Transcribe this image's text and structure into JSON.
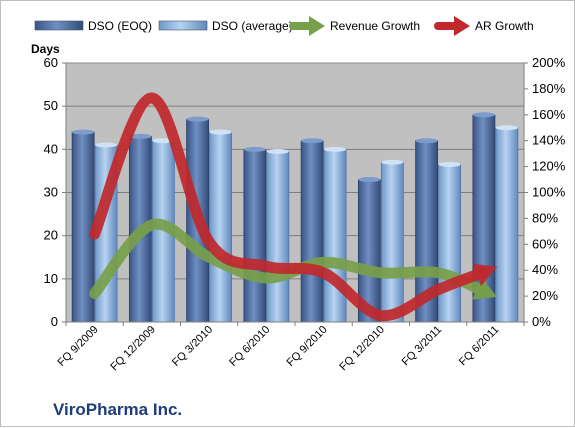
{
  "company": "ViroPharma Inc.",
  "chart_data": {
    "type": "bar",
    "title": "",
    "ylabel": "Days",
    "ylim": [
      0,
      60
    ],
    "yticks": [
      0,
      10,
      20,
      30,
      40,
      50,
      60
    ],
    "y2lim": [
      0,
      200
    ],
    "y2ticks": [
      "0%",
      "20%",
      "40%",
      "60%",
      "80%",
      "100%",
      "120%",
      "140%",
      "160%",
      "180%",
      "200%"
    ],
    "categories": [
      "FQ 9/2009",
      "FQ 12/2009",
      "FQ 3/2010",
      "FQ 6/2010",
      "FQ 9/2010",
      "FQ 12/2010",
      "FQ 3/2011",
      "FQ 6/2011"
    ],
    "grid": true,
    "legend": "top",
    "series": [
      {
        "name": "DSO (EOQ)",
        "kind": "bar",
        "axis": "left",
        "color": "#4f6fa3",
        "values": [
          44,
          43,
          47,
          40,
          42,
          33,
          42,
          48
        ]
      },
      {
        "name": "DSO (average)",
        "kind": "bar",
        "axis": "left",
        "color": "#8fb3de",
        "values": [
          41,
          42,
          44,
          39.5,
          40,
          37,
          36.5,
          45
        ]
      },
      {
        "name": "Revenue Growth",
        "kind": "line",
        "axis": "right",
        "unit": "%",
        "color": "#77a04a",
        "values": [
          22,
          75,
          50,
          34,
          46,
          38,
          38,
          20
        ]
      },
      {
        "name": "AR Growth",
        "kind": "line",
        "axis": "right",
        "unit": "%",
        "color": "#c0282d",
        "values": [
          68,
          173,
          62,
          43,
          38,
          5,
          25,
          42
        ]
      }
    ]
  }
}
